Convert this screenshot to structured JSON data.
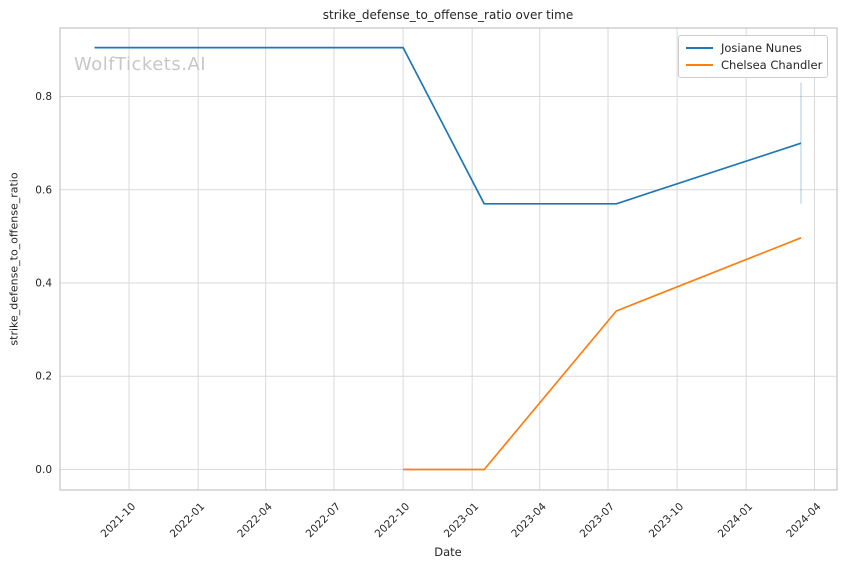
{
  "watermark": "WolfTickets.AI",
  "chart_data": {
    "type": "line",
    "title": "strike_defense_to_offense_ratio over time",
    "xlabel": "Date",
    "ylabel": "strike_defense_to_offense_ratio",
    "grid": true,
    "legend_position": "top-right",
    "background": "#ffffff",
    "grid_color": "#d9d9d9",
    "spine_color": "#c4c4c4",
    "text_color": "#262626",
    "xlim": [
      "2021-07-01",
      "2024-05-01"
    ],
    "ylim": [
      -0.044,
      0.947
    ],
    "y_ticks": [
      {
        "label": "0.0",
        "value": 0.0
      },
      {
        "label": "0.2",
        "value": 0.2
      },
      {
        "label": "0.4",
        "value": 0.4
      },
      {
        "label": "0.6",
        "value": 0.6
      },
      {
        "label": "0.8",
        "value": 0.8
      }
    ],
    "x_ticks": [
      {
        "label": "2021-10",
        "date": "2021-10-01"
      },
      {
        "label": "2022-01",
        "date": "2022-01-01"
      },
      {
        "label": "2022-04",
        "date": "2022-04-01"
      },
      {
        "label": "2022-07",
        "date": "2022-07-01"
      },
      {
        "label": "2022-10",
        "date": "2022-10-01"
      },
      {
        "label": "2023-01",
        "date": "2023-01-01"
      },
      {
        "label": "2023-04",
        "date": "2023-04-01"
      },
      {
        "label": "2023-07",
        "date": "2023-07-01"
      },
      {
        "label": "2023-10",
        "date": "2023-10-01"
      },
      {
        "label": "2024-01",
        "date": "2024-01-01"
      },
      {
        "label": "2024-04",
        "date": "2024-04-01"
      }
    ],
    "series": [
      {
        "name": "Josiane Nunes",
        "color": "#1f77b4",
        "points": [
          [
            "2021-08-16",
            0.905
          ],
          [
            "2022-10-01",
            0.905
          ],
          [
            "2023-01-17",
            0.57
          ],
          [
            "2023-07-12",
            0.57
          ],
          [
            "2024-03-14",
            0.7
          ]
        ],
        "error_bar": {
          "date": "2024-03-14",
          "low": 0.57,
          "high": 0.83
        }
      },
      {
        "name": "Chelsea Chandler",
        "color": "#ff7f0e",
        "points": [
          [
            "2022-10-01",
            0.0
          ],
          [
            "2023-01-17",
            0.0
          ],
          [
            "2023-07-12",
            0.34
          ],
          [
            "2024-03-14",
            0.497
          ]
        ]
      }
    ]
  }
}
